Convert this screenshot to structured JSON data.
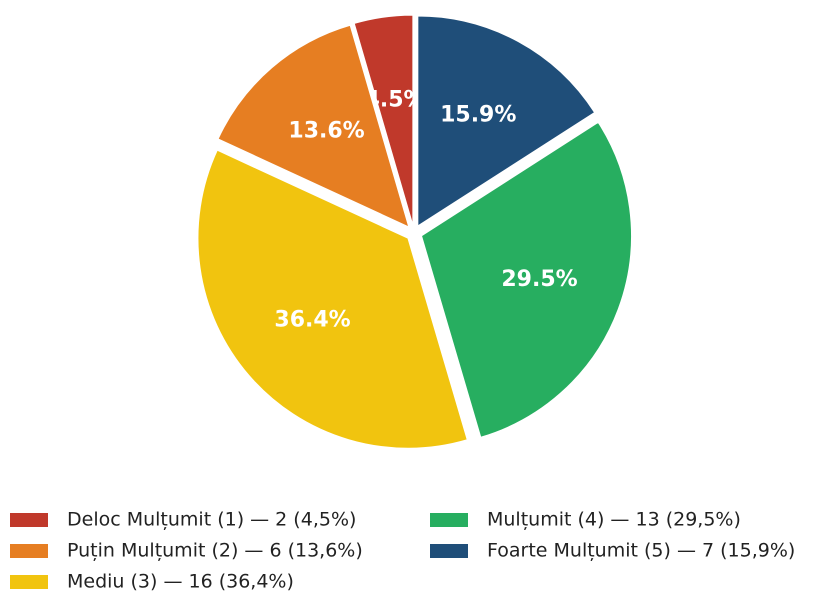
{
  "chart_data": {
    "type": "pie",
    "categories": [
      "Deloc Mulțumit (1) — 2 (4,5%)",
      "Puțin Mulțumit (2) — 6 (13,6%)",
      "Mediu (3) — 16 (36,4%)",
      "Mulțumit (4) — 13 (29,5%)",
      "Foarte Mulțumit (5) — 7 (15,9%)"
    ],
    "values": [
      4.5,
      13.6,
      36.4,
      29.5,
      15.9
    ],
    "value_labels": [
      "4.5%",
      "13.6%",
      "36.4%",
      "29.5%",
      "15.9%"
    ],
    "colors": [
      "#c0392b",
      "#e67e22",
      "#f1c40f",
      "#27ae60",
      "#1f4e79"
    ],
    "legend": "bottom"
  }
}
